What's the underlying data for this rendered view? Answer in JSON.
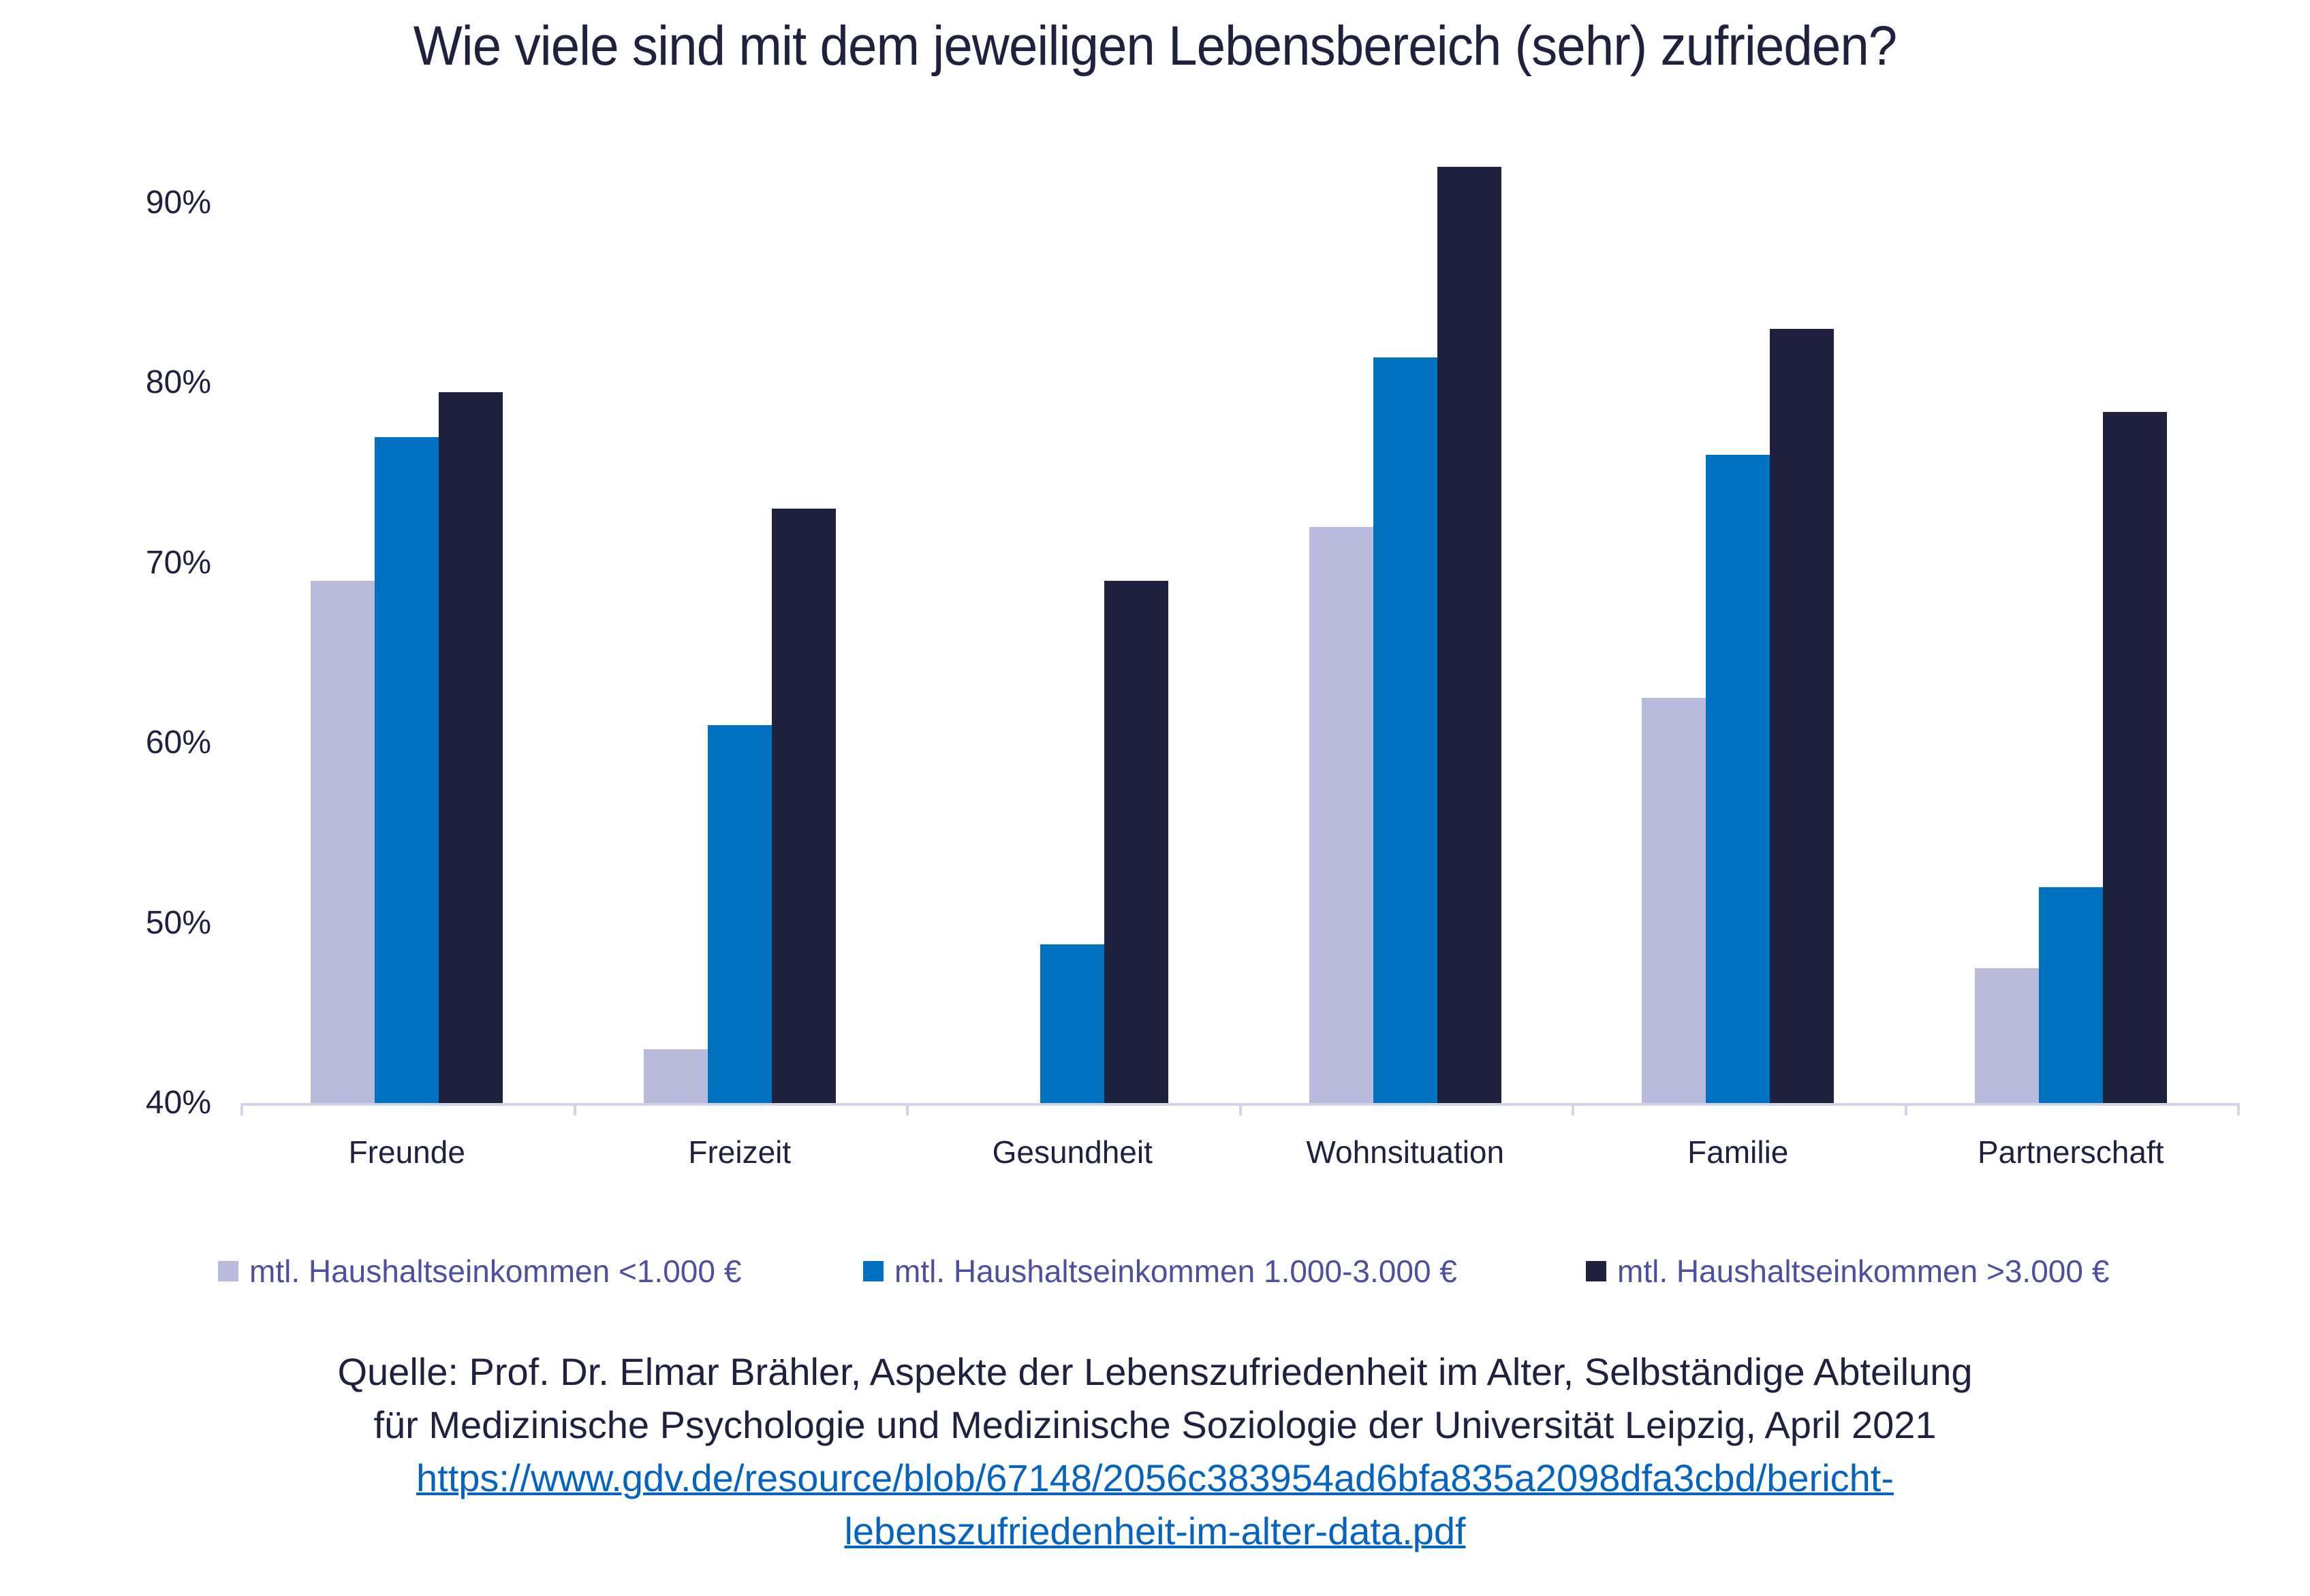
{
  "title": "Wie viele sind mit dem jeweiligen Lebensbereich (sehr) zufrieden?",
  "colors": {
    "low": "#babbdc",
    "mid": "#0070c0",
    "high": "#20213f",
    "axis": "#d3d3e8",
    "text": "#20213f",
    "legend_text": "#4d4fa0",
    "link": "#0563c1"
  },
  "y_axis": {
    "ticks": [
      "90%",
      "80%",
      "70%",
      "60%",
      "50%",
      "40%"
    ]
  },
  "x_axis": {
    "categories": [
      "Freunde",
      "Freizeit",
      "Gesundheit",
      "Wohnsituation",
      "Familie",
      "Partnerschaft"
    ]
  },
  "legend": {
    "items": [
      {
        "label": "mtl. Haushaltseinkommen <1.000 €",
        "color": "#babbdc"
      },
      {
        "label": "mtl. Haushaltseinkommen 1.000-3.000 €",
        "color": "#0070c0"
      },
      {
        "label": "mtl. Haushaltseinkommen >3.000 €",
        "color": "#20213f"
      }
    ]
  },
  "source": {
    "line1": "Quelle: Prof. Dr. Elmar Brähler, Aspekte der Lebenszufriedenheit im Alter, Selbständige Abteilung",
    "line2": "für Medizinische Psychologie und Medizinische Soziologie der Universität Leipzig, April 2021",
    "link_line1": "https://www.gdv.de/resource/blob/67148/2056c383954ad6bfa835a2098dfa3cbd/bericht-",
    "link_line2": "lebenszufriedenheit-im-alter-data.pdf"
  },
  "chart_data": {
    "type": "bar",
    "title": "Wie viele sind mit dem jeweiligen Lebensbereich (sehr) zufrieden?",
    "xlabel": "",
    "ylabel": "",
    "ylim": [
      40,
      92
    ],
    "y_ticks": [
      40,
      50,
      60,
      70,
      80,
      90
    ],
    "y_tick_format": "percent",
    "grid": false,
    "legend_position": "bottom",
    "categories": [
      "Freunde",
      "Freizeit",
      "Gesundheit",
      "Wohnsituation",
      "Familie",
      "Partnerschaft"
    ],
    "series": [
      {
        "name": "mtl. Haushaltseinkommen <1.000 €",
        "color": "#babbdc",
        "values": [
          69,
          43,
          40,
          72,
          62.5,
          47.5
        ]
      },
      {
        "name": "mtl. Haushaltseinkommen 1.000-3.000 €",
        "color": "#0070c0",
        "values": [
          77,
          61,
          48.8,
          81.4,
          76,
          52
        ]
      },
      {
        "name": "mtl. Haushaltseinkommen >3.000 €",
        "color": "#20213f",
        "values": [
          79.5,
          73,
          69,
          92,
          83,
          78.4
        ]
      }
    ]
  }
}
